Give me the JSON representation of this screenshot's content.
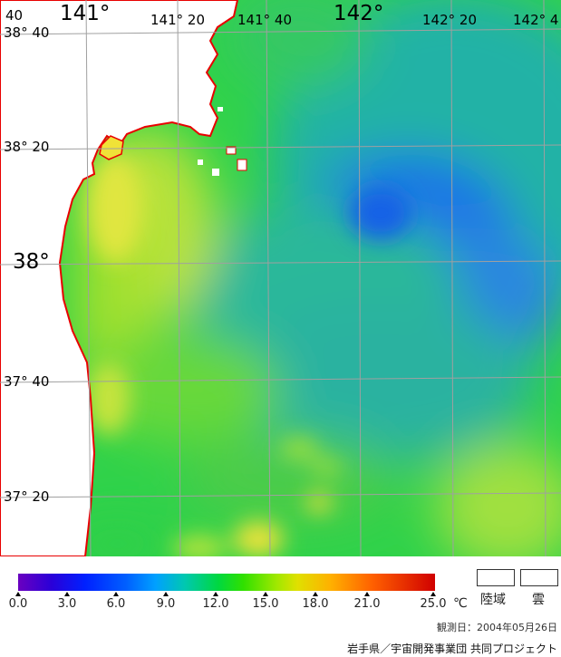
{
  "map": {
    "longitude_labels": [
      {
        "text": "141°",
        "size": "big"
      },
      {
        "text": "141° 20",
        "size": "small"
      },
      {
        "text": "141° 40",
        "size": "small"
      },
      {
        "text": "142°",
        "size": "big"
      },
      {
        "text": "142° 20",
        "size": "small"
      },
      {
        "text": "142° 4",
        "size": "small"
      }
    ],
    "latitude_labels": [
      {
        "text": "38° 40",
        "size": "small"
      },
      {
        "text": "38° 20",
        "size": "small"
      },
      {
        "text": "38°",
        "size": "big"
      },
      {
        "text": "37° 40",
        "size": "small"
      },
      {
        "text": "37° 20",
        "size": "small"
      }
    ],
    "corner_label": "40",
    "colors": {
      "land": "#ffffff",
      "coastline": "#e80000",
      "grid": "#a0a0a0"
    }
  },
  "legend": {
    "ticks": [
      "0.0",
      "3.0",
      "6.0",
      "9.0",
      "12.0",
      "15.0",
      "18.0",
      "21.0",
      "25.0"
    ],
    "unit": "℃",
    "land_label": "陸域",
    "cloud_label": "雲"
  },
  "footer": {
    "observation_date": "観測日：2004年05月26日",
    "credit": "岩手県／宇宙開発事業団 共同プロジェクト"
  }
}
